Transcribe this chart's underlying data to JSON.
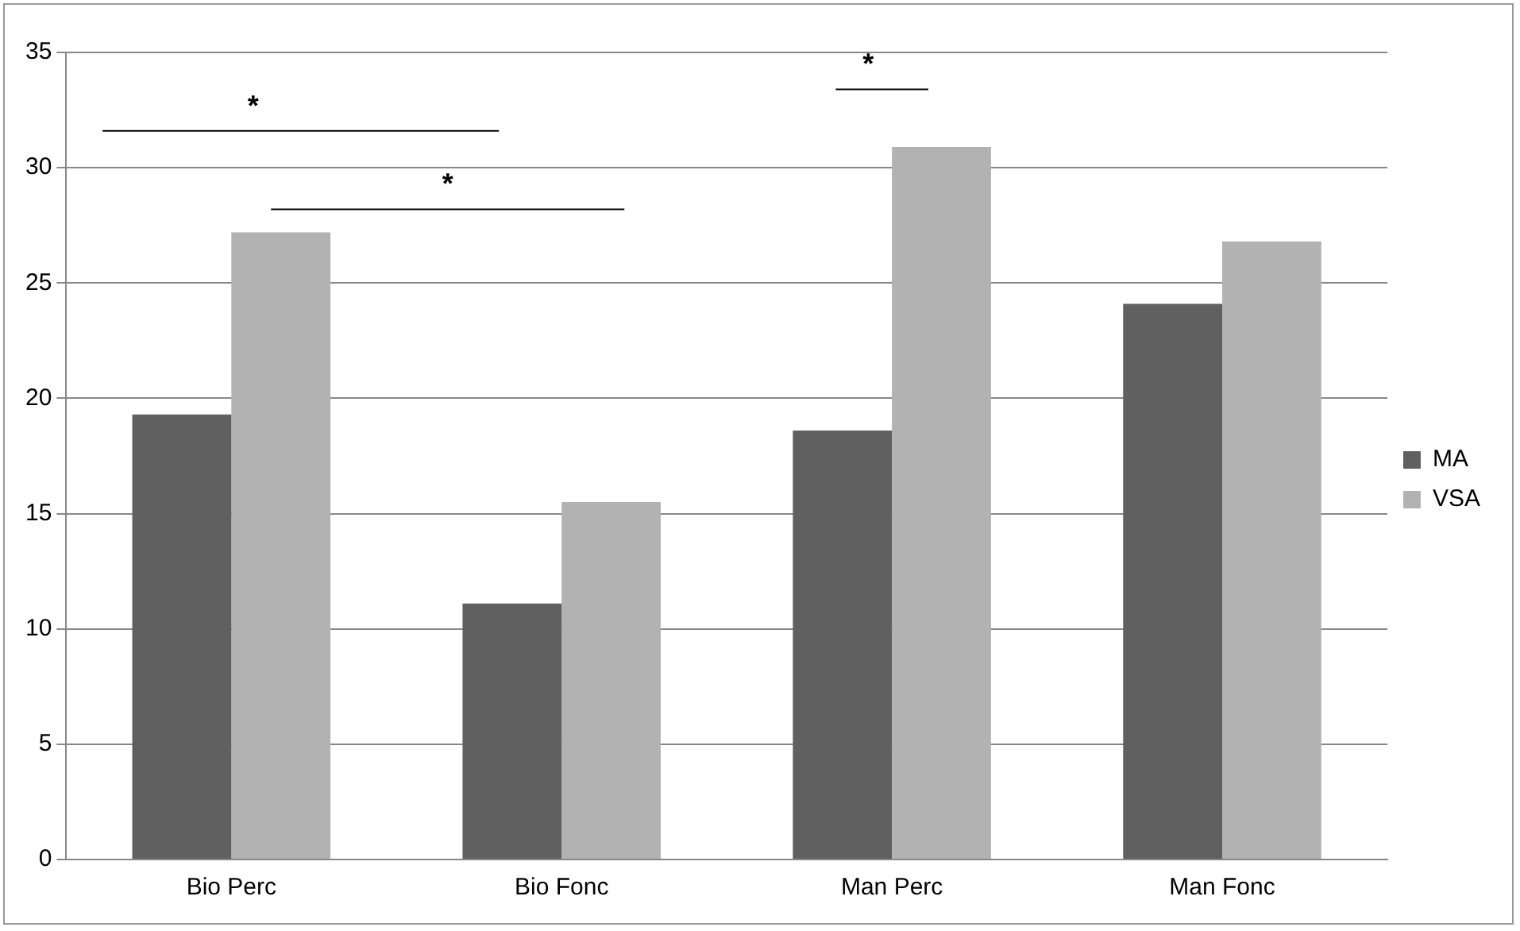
{
  "chart_data": {
    "type": "bar",
    "categories": [
      "Bio Perc",
      "Bio Fonc",
      "Man Perc",
      "Man Fonc"
    ],
    "series": [
      {
        "name": "MA",
        "color": "#606060",
        "values": [
          19.3,
          11.1,
          18.6,
          24.1
        ]
      },
      {
        "name": "VSA",
        "color": "#b2b2b2",
        "values": [
          27.2,
          15.5,
          30.9,
          26.8
        ]
      }
    ],
    "ylim": [
      0,
      35
    ],
    "yticks": [
      0,
      5,
      10,
      15,
      20,
      25,
      30,
      35
    ],
    "grid": "y",
    "legend": "right",
    "annotations": [
      "*",
      "*",
      "*"
    ]
  }
}
